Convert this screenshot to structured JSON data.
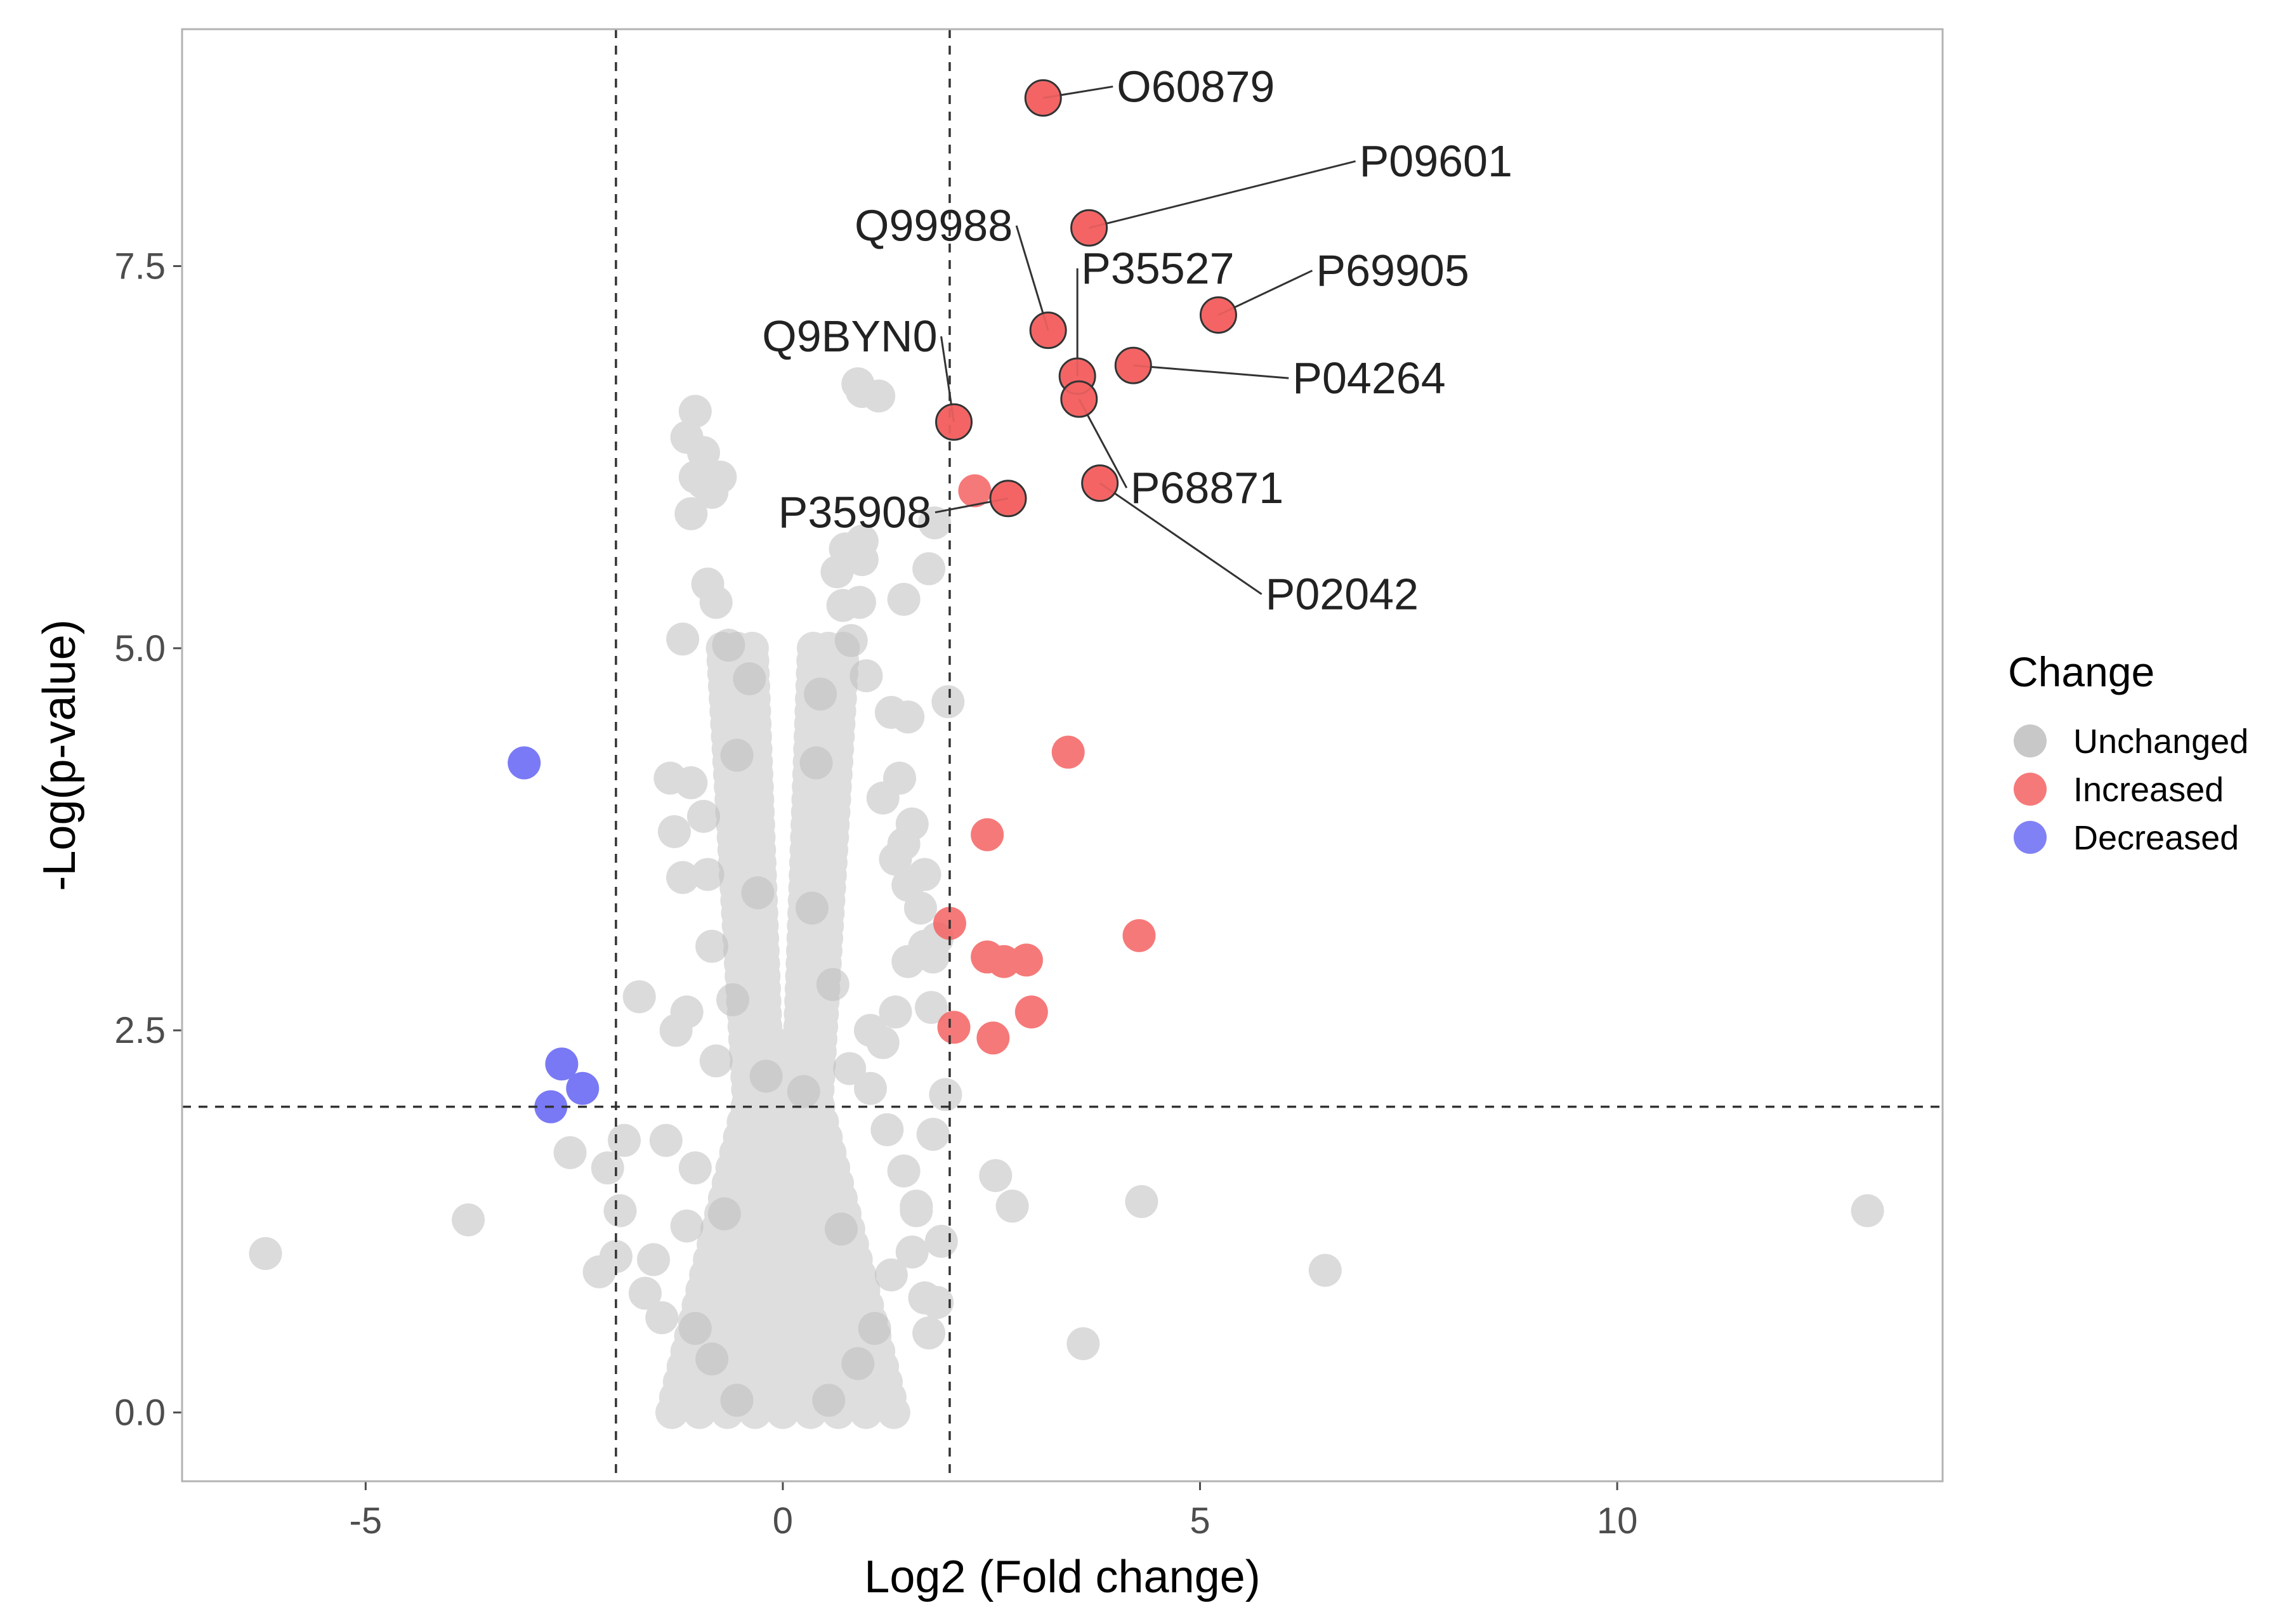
{
  "chart_data": {
    "type": "scatter",
    "title": "",
    "xlabel": "Log2 (Fold change)",
    "ylabel": "-Log(p-value)",
    "xlim": [
      -7.2,
      13.9
    ],
    "ylim": [
      -0.45,
      9.05
    ],
    "xticks": [
      -5,
      0,
      5,
      10
    ],
    "xtick_labels": [
      "-5",
      "0",
      "5",
      "10"
    ],
    "yticks": [
      0,
      2.5,
      5,
      7.5
    ],
    "ytick_labels": [
      "0.0",
      "2.5",
      "5.0",
      "7.5"
    ],
    "grid": false,
    "thresholds": {
      "log2fc": [
        -2,
        2
      ],
      "neg_log_p": 2
    },
    "legend": {
      "title": "Change",
      "position": "right",
      "entries": [
        {
          "name": "Unchanged",
          "color": "#bebebe"
        },
        {
          "name": "Increased",
          "color": "#f46262"
        },
        {
          "name": "Decreased",
          "color": "#6b6bf5"
        }
      ]
    },
    "series": [
      {
        "name": "Unchanged",
        "color": "#bebebe",
        "opacity": 0.55,
        "points": [
          [
            -6.2,
            1.04
          ],
          [
            -3.77,
            1.26
          ],
          [
            -2.55,
            1.7
          ],
          [
            -2.2,
            0.92
          ],
          [
            -2.1,
            1.6
          ],
          [
            -2.0,
            1.02
          ],
          [
            -1.95,
            1.32
          ],
          [
            -1.9,
            1.78
          ],
          [
            -1.72,
            2.72
          ],
          [
            -1.65,
            0.78
          ],
          [
            -1.55,
            1.0
          ],
          [
            -1.4,
            1.78
          ],
          [
            -1.45,
            0.62
          ],
          [
            -1.35,
            4.15
          ],
          [
            -1.3,
            3.8
          ],
          [
            -1.28,
            2.5
          ],
          [
            -1.2,
            3.5
          ],
          [
            -1.15,
            2.62
          ],
          [
            -1.2,
            5.06
          ],
          [
            -0.95,
            6.08
          ],
          [
            -1.05,
            6.12
          ],
          [
            -0.85,
            6.02
          ],
          [
            -1.1,
            5.88
          ],
          [
            -1.15,
            6.38
          ],
          [
            -1.05,
            6.55
          ],
          [
            -0.95,
            6.28
          ],
          [
            -0.75,
            6.12
          ],
          [
            -0.9,
            5.42
          ],
          [
            -0.8,
            5.3
          ],
          [
            -0.65,
            5.02
          ],
          [
            -1.1,
            4.12
          ],
          [
            -0.95,
            3.9
          ],
          [
            -0.9,
            3.52
          ],
          [
            -0.85,
            3.05
          ],
          [
            -1.05,
            1.6
          ],
          [
            -1.15,
            1.22
          ],
          [
            -1.05,
            0.55
          ],
          [
            -0.85,
            0.35
          ],
          [
            -0.55,
            0.08
          ],
          [
            0.55,
            0.08
          ],
          [
            0.9,
            0.32
          ],
          [
            1.1,
            0.55
          ],
          [
            1.3,
            0.9
          ],
          [
            1.55,
            1.05
          ],
          [
            1.7,
            0.75
          ],
          [
            1.6,
            1.32
          ],
          [
            1.45,
            1.58
          ],
          [
            1.25,
            1.85
          ],
          [
            1.05,
            2.12
          ],
          [
            1.2,
            2.42
          ],
          [
            1.35,
            2.62
          ],
          [
            1.5,
            2.95
          ],
          [
            1.7,
            3.05
          ],
          [
            1.8,
            2.98
          ],
          [
            1.65,
            3.3
          ],
          [
            1.5,
            3.45
          ],
          [
            1.35,
            3.62
          ],
          [
            1.45,
            3.72
          ],
          [
            1.55,
            3.85
          ],
          [
            1.7,
            3.52
          ],
          [
            1.2,
            4.02
          ],
          [
            1.4,
            4.15
          ],
          [
            1.5,
            4.55
          ],
          [
            1.3,
            4.58
          ],
          [
            1.0,
            4.82
          ],
          [
            0.82,
            5.05
          ],
          [
            0.92,
            5.3
          ],
          [
            0.72,
            5.28
          ],
          [
            0.65,
            5.5
          ],
          [
            0.95,
            5.58
          ],
          [
            0.75,
            5.65
          ],
          [
            0.95,
            5.7
          ],
          [
            0.9,
            6.73
          ],
          [
            0.95,
            6.68
          ],
          [
            1.15,
            6.65
          ],
          [
            1.82,
            5.82
          ],
          [
            1.75,
            5.52
          ],
          [
            1.45,
            5.32
          ],
          [
            1.98,
            4.65
          ],
          [
            1.85,
            3.1
          ],
          [
            1.78,
            2.65
          ],
          [
            1.95,
            2.08
          ],
          [
            1.8,
            1.82
          ],
          [
            1.6,
            1.35
          ],
          [
            1.9,
            1.12
          ],
          [
            1.85,
            0.72
          ],
          [
            1.75,
            0.52
          ],
          [
            2.55,
            1.55
          ],
          [
            2.75,
            1.35
          ],
          [
            4.3,
            1.38
          ],
          [
            3.6,
            0.45
          ],
          [
            6.5,
            0.93
          ],
          [
            13.0,
            1.32
          ],
          [
            1.05,
            2.5
          ],
          [
            0.7,
            1.2
          ],
          [
            -0.7,
            1.3
          ],
          [
            -0.4,
            4.8
          ],
          [
            0.45,
            4.7
          ],
          [
            -0.55,
            4.3
          ],
          [
            0.4,
            4.25
          ],
          [
            -0.3,
            3.4
          ],
          [
            0.35,
            3.3
          ],
          [
            -0.2,
            2.2
          ],
          [
            0.25,
            2.1
          ],
          [
            -0.6,
            2.7
          ],
          [
            0.6,
            2.8
          ],
          [
            -0.8,
            2.3
          ],
          [
            0.8,
            2.25
          ]
        ]
      },
      {
        "name": "Increased",
        "color": "#f46262",
        "opacity": 0.85,
        "points": [
          [
            3.12,
            8.6
          ],
          [
            3.67,
            7.75
          ],
          [
            5.22,
            7.18
          ],
          [
            3.18,
            7.08
          ],
          [
            4.2,
            6.85
          ],
          [
            3.53,
            6.78
          ],
          [
            3.55,
            6.63
          ],
          [
            2.05,
            6.48
          ],
          [
            3.8,
            6.08
          ],
          [
            2.7,
            5.98
          ],
          [
            2.3,
            6.03
          ],
          [
            3.42,
            4.32
          ],
          [
            2.45,
            3.78
          ],
          [
            4.27,
            3.12
          ],
          [
            2.0,
            3.2
          ],
          [
            2.45,
            2.98
          ],
          [
            2.65,
            2.95
          ],
          [
            2.92,
            2.96
          ],
          [
            2.98,
            2.62
          ],
          [
            2.05,
            2.52
          ],
          [
            2.52,
            2.45
          ]
        ]
      },
      {
        "name": "Decreased",
        "color": "#6b6bf5",
        "opacity": 0.9,
        "points": [
          [
            -3.1,
            4.25
          ],
          [
            -2.65,
            2.28
          ],
          [
            -2.4,
            2.12
          ],
          [
            -2.78,
            2.0
          ]
        ]
      }
    ],
    "labeled_points": [
      {
        "label": "O60879",
        "x": 3.12,
        "y": 8.6
      },
      {
        "label": "P09601",
        "x": 3.67,
        "y": 7.75
      },
      {
        "label": "Q99988",
        "x": 3.18,
        "y": 7.08
      },
      {
        "label": "P35527",
        "x": 3.53,
        "y": 6.78
      },
      {
        "label": "P69905",
        "x": 5.22,
        "y": 7.18
      },
      {
        "label": "Q9BYN0",
        "x": 2.05,
        "y": 6.48
      },
      {
        "label": "P04264",
        "x": 4.2,
        "y": 6.85
      },
      {
        "label": "P68871",
        "x": 3.55,
        "y": 6.63
      },
      {
        "label": "P35908",
        "x": 2.7,
        "y": 5.98
      },
      {
        "label": "P02042",
        "x": 3.8,
        "y": 6.08
      }
    ]
  }
}
